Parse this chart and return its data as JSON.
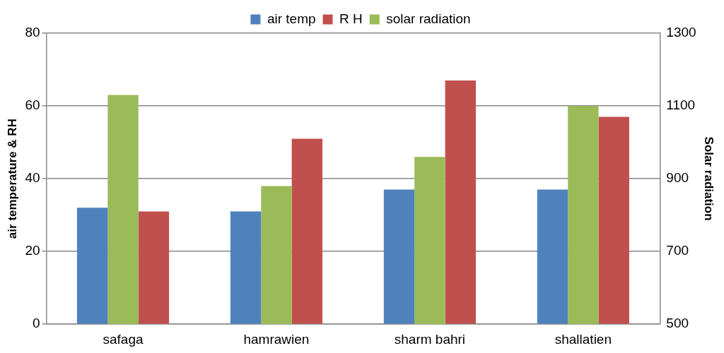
{
  "chart_data": {
    "type": "bar",
    "categories": [
      "safaga",
      "hamrawien",
      "sharm bahri",
      "shallatien"
    ],
    "series": [
      {
        "name": "air temp",
        "color": "#4f81bd",
        "values": [
          32,
          31,
          37,
          37
        ]
      },
      {
        "name": "solar radiation",
        "color": "#9bbb59",
        "values": [
          1130,
          880,
          960,
          1100
        ],
        "axis": "y2"
      },
      {
        "name": "R H",
        "color": "#c0504d",
        "values": [
          31,
          51,
          67,
          57
        ]
      }
    ],
    "ylabel": "air temperature & RH",
    "y2label": "Solar radiation",
    "ylim": [
      0,
      80
    ],
    "yticks": [
      0,
      20,
      40,
      60,
      80
    ],
    "y2lim": [
      500,
      1300
    ],
    "y2ticks": [
      500,
      700,
      900,
      1100,
      1300
    ],
    "grid": "y",
    "legend": "top"
  }
}
